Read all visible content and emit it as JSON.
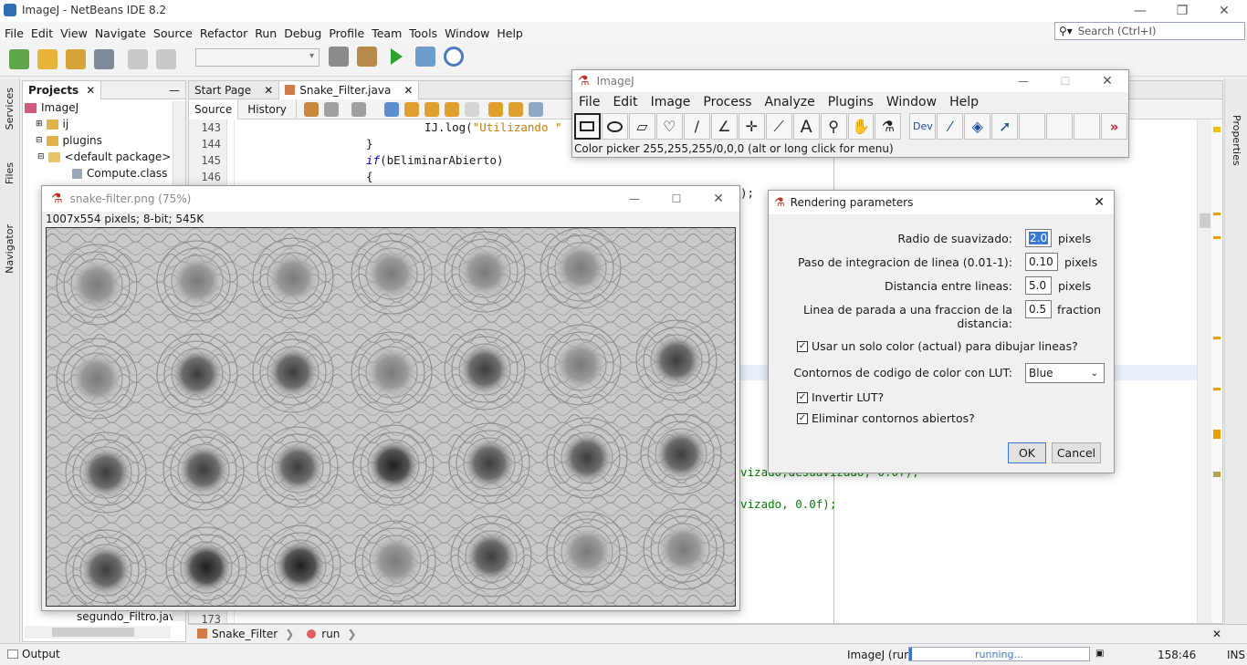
{
  "netbeans": {
    "title": "ImageJ - NetBeans IDE 8.2",
    "menu": [
      "File",
      "Edit",
      "View",
      "Navigate",
      "Source",
      "Refactor",
      "Run",
      "Debug",
      "Profile",
      "Team",
      "Tools",
      "Window",
      "Help"
    ],
    "search_placeholder": "Search (Ctrl+I)",
    "side_tabs": [
      "Services",
      "Files",
      "Navigator"
    ],
    "right_tabs": [
      "Properties"
    ],
    "projects": {
      "tab": "Projects",
      "tree": [
        "ImageJ",
        "ij",
        "plugins",
        "<default package>",
        "Compute.class",
        "segundo_Filtro.java"
      ]
    },
    "editor": {
      "tabs": [
        "Start Page",
        "Snake_Filter.java"
      ],
      "modes": [
        "Source",
        "History"
      ],
      "line_numbers": [
        "143",
        "144",
        "145",
        "146",
        "173"
      ],
      "code_lines": [
        {
          "text_a": "IJ.log(",
          "text_b": "\"Utilizando \""
        },
        {
          "text_a": "}"
        },
        {
          "kw": "if",
          "text_a": "(bEliminarAbierto)"
        },
        {
          "text_a": "{"
        }
      ],
      "code_fragment_1": ");",
      "code_fragment_2": "vizado,desuavizado, 0.0f);",
      "code_fragment_3": "vizado, 0.0f);"
    },
    "navigation": [
      "Snake_Filter",
      "run"
    ],
    "status": {
      "output_tab": "Output",
      "process": "ImageJ (run)",
      "progress_text": "running...",
      "position": "158:46",
      "mode": "INS"
    }
  },
  "imagej": {
    "title": "ImageJ",
    "menu": [
      "File",
      "Edit",
      "Image",
      "Process",
      "Analyze",
      "Plugins",
      "Window",
      "Help"
    ],
    "tools": [
      "rectangle-tool",
      "oval-tool",
      "polygon-tool",
      "freehand-tool",
      "line-tool",
      "angle-tool",
      "point-tool",
      "wand-tool",
      "text-tool",
      "magnifier-tool",
      "hand-tool",
      "dropper-tool",
      "dev-tool",
      "brush-tool",
      "flood-tool",
      "arrow-tool"
    ],
    "dev_label": "Dev",
    "status": "Color picker 255,255,255/0,0,0 (alt or long click for menu)"
  },
  "snake_window": {
    "title": "snake-filter.png (75%)",
    "info": "1007x554 pixels; 8-bit; 545K"
  },
  "render_dialog": {
    "title": "Rendering parameters",
    "params": [
      {
        "label": "Radio de suavizado:",
        "value": "2.0",
        "unit": "pixels"
      },
      {
        "label": "Paso de integracion de linea (0.01-1):",
        "value": "0.10",
        "unit": "pixels"
      },
      {
        "label": "Distancia entre lineas:",
        "value": "5.0",
        "unit": "pixels"
      },
      {
        "label": "Linea de parada a una fraccion de la distancia:",
        "value": "0.5",
        "unit": "fraction"
      }
    ],
    "checks": [
      {
        "label": "Usar un solo color (actual) para dibujar lineas?",
        "checked": true
      },
      {
        "label": "Invertir LUT?",
        "checked": true
      },
      {
        "label": "Eliminar contornos abiertos?",
        "checked": true
      }
    ],
    "lut_label": "Contornos de codigo de color con LUT:",
    "lut_value": "Blue",
    "ok": "OK",
    "cancel": "Cancel"
  }
}
